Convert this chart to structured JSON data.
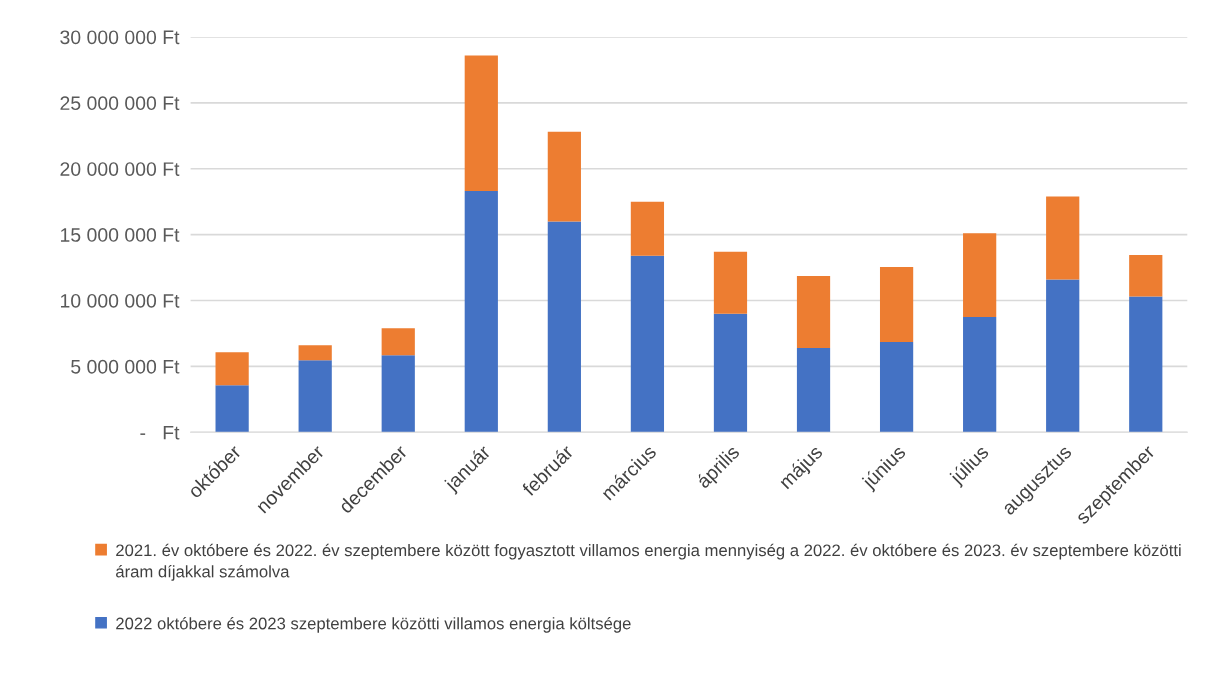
{
  "chart_data": {
    "type": "bar",
    "stacked": true,
    "categories": [
      "október",
      "november",
      "december",
      "január",
      "február",
      "március",
      "április",
      "május",
      "június",
      "július",
      "augusztus",
      "szeptember"
    ],
    "series": [
      {
        "name": "2022 októbere és 2023 szeptembere közötti villamos energia költsége",
        "color": "#4472c4",
        "values": [
          3570000,
          5470000,
          5850000,
          18300000,
          16000000,
          13400000,
          9000000,
          6400000,
          6850000,
          8750000,
          11600000,
          10300000
        ]
      },
      {
        "name": "2021. év októbere és 2022. év szeptembere között fogyasztott villamos energia mennyiség a 2022. év októbere és 2023. év szeptembere közötti áram díjakkal számolva",
        "color": "#ed7d31",
        "values": [
          2500000,
          1130000,
          2050000,
          10300000,
          6800000,
          4100000,
          4700000,
          5450000,
          5700000,
          6350000,
          6300000,
          3150000
        ]
      }
    ],
    "ylim": [
      0,
      30000000
    ],
    "yticks": [
      {
        "value": 0,
        "label": "-   Ft"
      },
      {
        "value": 5000000,
        "label": "5 000 000 Ft"
      },
      {
        "value": 10000000,
        "label": "10 000 000 Ft"
      },
      {
        "value": 15000000,
        "label": "15 000 000 Ft"
      },
      {
        "value": 20000000,
        "label": "20 000 000 Ft"
      },
      {
        "value": 25000000,
        "label": "25 000 000 Ft"
      },
      {
        "value": 30000000,
        "label": "30 000 000 Ft"
      }
    ],
    "grid": "y",
    "legend": "bottom"
  }
}
